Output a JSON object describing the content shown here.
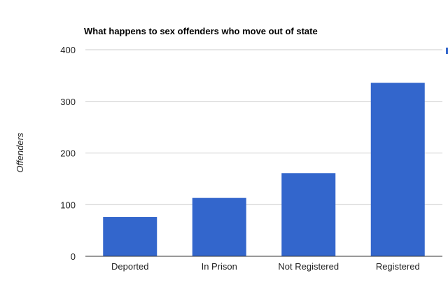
{
  "chart_data": {
    "type": "bar",
    "title": "What happens to sex offenders who move out of state",
    "xlabel": "",
    "ylabel": "Offenders",
    "categories": [
      "Deported",
      "In Prison",
      "Not Registered",
      "Registered"
    ],
    "series": [
      {
        "values": [
          76,
          113,
          161,
          336
        ]
      }
    ],
    "ylim": [
      0,
      400
    ],
    "yticks": [
      0,
      100,
      200,
      300,
      400
    ],
    "grid": true,
    "legend": "none"
  },
  "colors": {
    "bar": "#3366cc",
    "grid": "#cccccc",
    "baseline": "#333333",
    "legend_marker": "#3366cc"
  }
}
